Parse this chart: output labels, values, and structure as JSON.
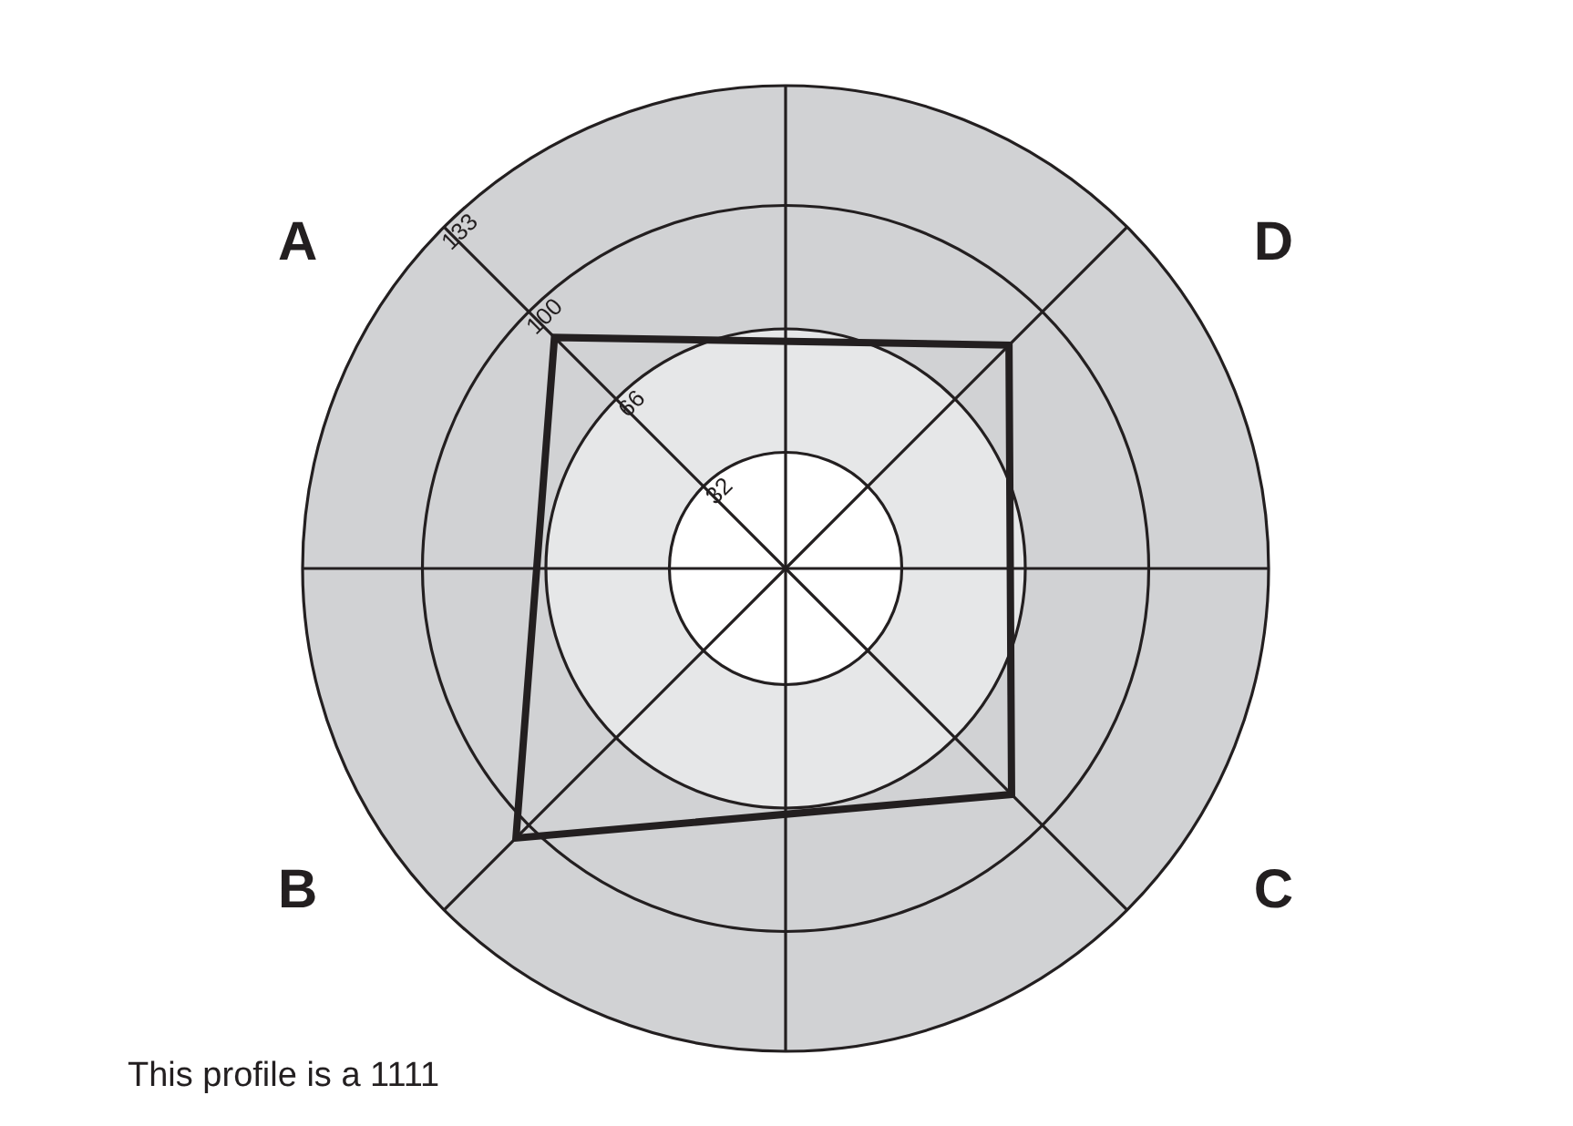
{
  "chart_data": {
    "type": "radar",
    "categories": [
      "D",
      "C",
      "B",
      "A"
    ],
    "series": [
      {
        "color": "#231f20",
        "values": [
          87,
          88,
          105,
          90
        ]
      }
    ],
    "ylim": [
      0,
      133
    ],
    "yticks": [
      32,
      66,
      100,
      133
    ],
    "grid": true,
    "legend": false,
    "annotations": [
      "This profile is a 1111"
    ]
  }
}
